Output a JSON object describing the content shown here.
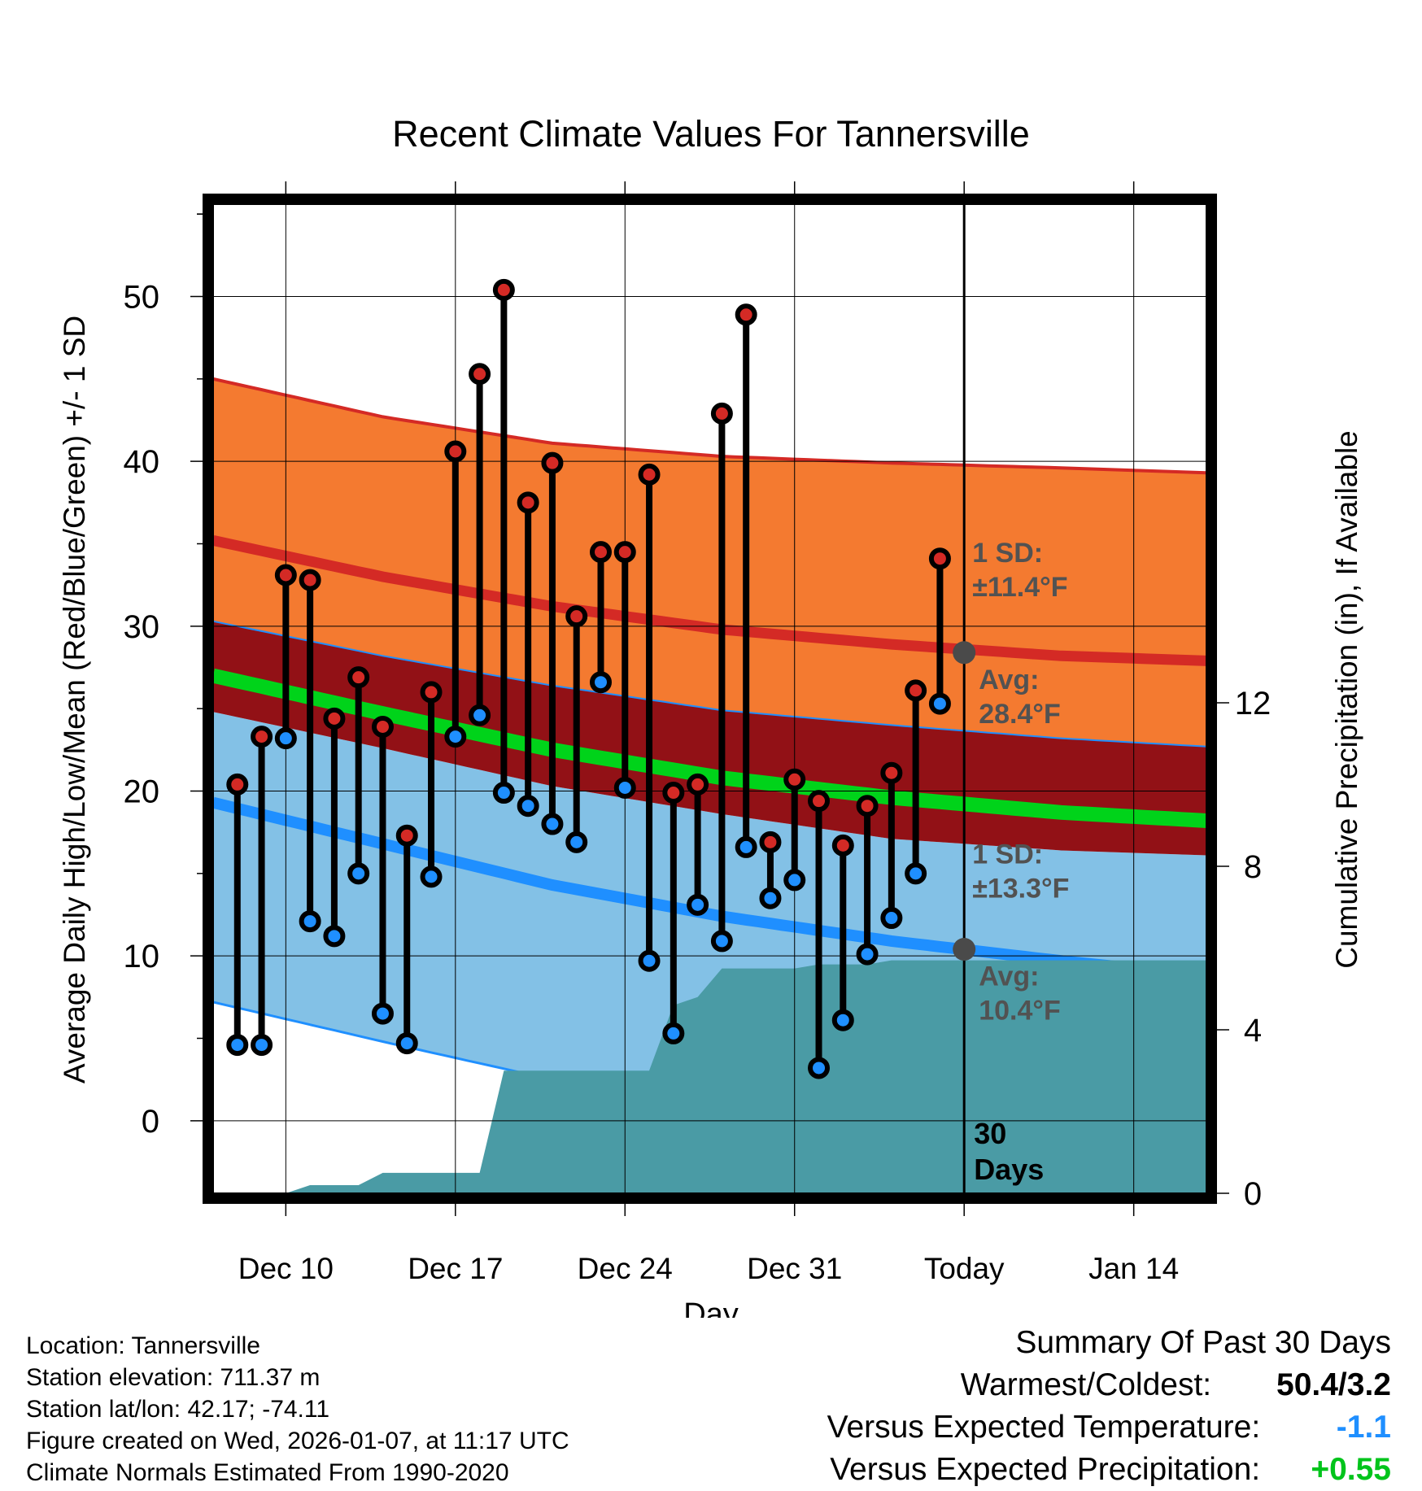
{
  "chart_data": {
    "type": "line",
    "title": "Recent Climate Values For Tannersville",
    "xlabel": "Day",
    "ylabel_left": "Average Daily High/Low/Mean (Red/Blue/Green) +/- 1 SD",
    "ylabel_right": "Cumulative Precipitation (in), If Available",
    "x_tick_labels": [
      "Dec 10",
      "Dec 17",
      "Dec 24",
      "Dec 31",
      "Today",
      "Jan 14"
    ],
    "x_tick_days": [
      3,
      10,
      17,
      24,
      31,
      38
    ],
    "xlim_days": [
      0,
      41
    ],
    "y_left_ticks": [
      "0",
      "10",
      "20",
      "30",
      "40",
      "50"
    ],
    "y_left_tick_values": [
      0,
      10,
      20,
      30,
      40,
      50
    ],
    "y_left_range": [
      -4.4,
      55.6
    ],
    "y_right_ticks": [
      "0",
      "4",
      "8",
      "12"
    ],
    "y_right_tick_values": [
      0,
      4,
      8,
      12
    ],
    "y_right_range": [
      0,
      24.2
    ],
    "today_day": 31,
    "today_label": "30\nDays",
    "normals": {
      "days": [
        0,
        7,
        14,
        21,
        28,
        35,
        41
      ],
      "high_avg": [
        35.2,
        33.0,
        31.2,
        29.8,
        28.9,
        28.2,
        27.9
      ],
      "high_plus_sd": [
        45.0,
        42.7,
        41.1,
        40.3,
        39.9,
        39.6,
        39.3
      ],
      "high_minus_sd": [
        30.3,
        28.2,
        26.4,
        24.9,
        24.0,
        23.2,
        22.7
      ],
      "mean_avg": [
        27.0,
        24.7,
        22.5,
        20.8,
        19.6,
        18.7,
        18.2
      ],
      "low_plus_sd": [
        24.8,
        22.6,
        20.3,
        18.6,
        17.1,
        16.4,
        16.1
      ],
      "low_avg": [
        19.3,
        16.8,
        14.3,
        12.4,
        10.9,
        9.7,
        8.8
      ],
      "low_minus_sd": [
        7.2,
        4.8,
        2.5,
        1.3,
        -0.2,
        -1.2,
        -1.9
      ]
    },
    "high_sd_label": "1 SD:\n±11.4°F",
    "high_avg_label": "Avg:\n28.4°F",
    "high_avg_today": 28.4,
    "low_sd_label": "1 SD:\n±13.3°F",
    "low_avg_label": "Avg:\n10.4°F",
    "low_avg_today": 10.4,
    "daily": {
      "days": [
        1,
        2,
        3,
        4,
        5,
        6,
        7,
        8,
        9,
        10,
        11,
        12,
        13,
        14,
        15,
        16,
        17,
        18,
        19,
        20,
        21,
        22,
        23,
        24,
        25,
        26,
        27,
        28,
        29,
        30
      ],
      "highs": [
        20.4,
        23.3,
        33.1,
        32.8,
        24.4,
        26.9,
        23.9,
        17.3,
        26.0,
        40.6,
        45.3,
        50.4,
        37.5,
        39.9,
        30.6,
        34.5,
        34.5,
        39.2,
        19.9,
        20.4,
        42.9,
        48.9,
        16.9,
        20.7,
        19.4,
        16.7,
        19.1,
        21.1,
        26.1,
        34.1
      ],
      "lows": [
        4.6,
        4.6,
        23.2,
        12.1,
        11.2,
        15.0,
        6.5,
        4.7,
        14.8,
        23.3,
        24.6,
        19.9,
        19.1,
        18.0,
        16.9,
        26.6,
        20.2,
        9.7,
        5.3,
        13.1,
        10.9,
        16.6,
        13.5,
        14.6,
        3.2,
        6.1,
        10.1,
        12.3,
        15.0,
        25.3
      ]
    },
    "precip": {
      "days": [
        0,
        3,
        4,
        6,
        7,
        8,
        10,
        11,
        12,
        13,
        14,
        15,
        16,
        17,
        18,
        19,
        20,
        21,
        22,
        23,
        24,
        25,
        26,
        27,
        28,
        29,
        30,
        31,
        41
      ],
      "values": [
        0,
        0,
        0.2,
        0.2,
        0.5,
        0.5,
        0.5,
        0.5,
        3.0,
        3.0,
        3.0,
        3.0,
        3.0,
        3.0,
        3.0,
        4.6,
        4.8,
        5.5,
        5.5,
        5.5,
        5.5,
        5.6,
        5.6,
        5.6,
        5.7,
        5.7,
        5.7,
        5.7,
        5.7
      ]
    },
    "colors": {
      "high_band": "#f47a30",
      "high_line": "#d42a25",
      "low_band": "#83c1e6",
      "low_line": "#1f8fff",
      "mean_band": "#921116",
      "mean_line": "#00d31a",
      "precip": "#4a9ba5",
      "high_marker": "#d42a25",
      "low_marker": "#1f8fff",
      "label_gray": "#525252",
      "warm": "#1f8fff",
      "precip_text": "#00c41b"
    }
  },
  "footer": {
    "location": "Location: Tannersville",
    "elevation": "Station elevation: 711.37 m",
    "latlon": "Station lat/lon: 42.17; -74.11",
    "created": "Figure created on Wed, 2026-01-07, at 11:17 UTC",
    "normals": "Climate Normals Estimated From 1990-2020"
  },
  "summary": {
    "title": "Summary Of Past 30 Days",
    "warmest_label": "Warmest/Coldest:",
    "warmest_value": "50.4/3.2",
    "temp_label": "Versus Expected Temperature:",
    "temp_value": "-1.1",
    "precip_label": "Versus Expected Precipitation:",
    "precip_value": "+0.55"
  }
}
